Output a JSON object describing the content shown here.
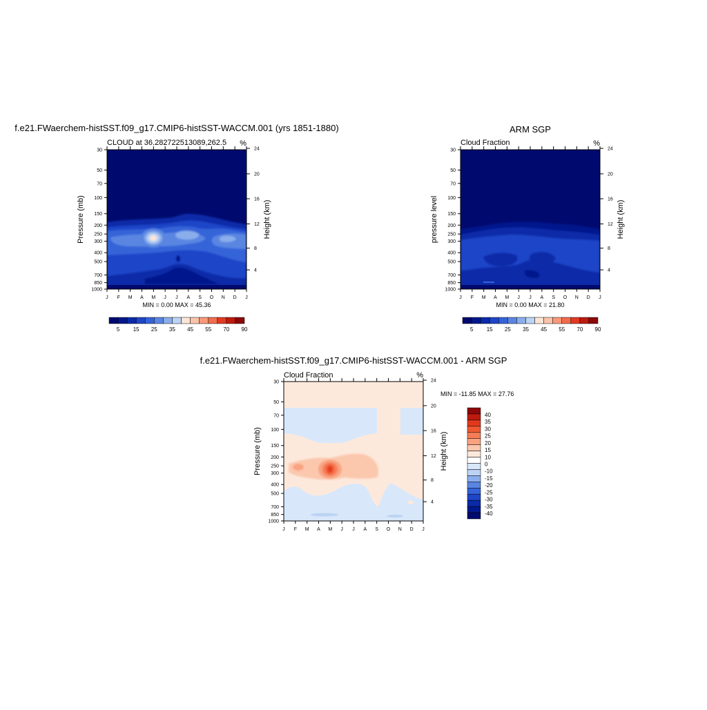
{
  "colors": {
    "blue_scale": [
      "#000a6e",
      "#00188c",
      "#0a2aa8",
      "#1f45c8",
      "#3563d8",
      "#5a86e2",
      "#8aaeeb",
      "#bdd3f3",
      "#fde5d6",
      "#fbc4aa",
      "#f9997a",
      "#f36c4c",
      "#e23a22",
      "#bf1a0e",
      "#8c0909"
    ],
    "diff_scale": [
      "#000a6e",
      "#00188c",
      "#0a2aa8",
      "#1f45c8",
      "#3563d8",
      "#5a86e2",
      "#8aaeeb",
      "#bdd3f3",
      "#d8e8fa",
      "#ffffff",
      "#fde9dc",
      "#fbc8ae",
      "#f9a381",
      "#f57d56",
      "#ef5a33",
      "#e2391e",
      "#bf1a0e",
      "#8c0909"
    ]
  },
  "chart_data": [
    {
      "type": "heatmap",
      "title": "f.e21.FWaerchem-histSST.f09_g17.CMIP6-histSST-WACCM.001 (yrs 1851-1880)",
      "subtitle": "CLOUD at 36.282722513089,262.5",
      "units": "%",
      "ylabel": "Pressure (mb)",
      "ylabel_right": "Height (km)",
      "x_ticks": [
        "J",
        "F",
        "M",
        "A",
        "M",
        "J",
        "J",
        "A",
        "S",
        "O",
        "N",
        "D",
        "J"
      ],
      "y_ticks": [
        "30",
        "50",
        "70",
        "100",
        "150",
        "200",
        "250",
        "300",
        "400",
        "500",
        "700",
        "850",
        "1000"
      ],
      "y_ticks_right": [
        "24",
        "20",
        "16",
        "12",
        "8",
        "4"
      ],
      "stats": "MIN =   0.00 MAX =  45.36",
      "min": 0.0,
      "max": 45.36,
      "colorbar_labels": [
        "5",
        "15",
        "25",
        "35",
        "45",
        "55",
        "70",
        "90"
      ],
      "levels": [
        5,
        10,
        15,
        20,
        25,
        30,
        35,
        40,
        45,
        50,
        55,
        60,
        70,
        80,
        90
      ]
    },
    {
      "type": "heatmap",
      "title": "ARM SGP",
      "subtitle": "Cloud Fraction",
      "units": "%",
      "ylabel": "pressure level",
      "ylabel_right": "Height (km)",
      "x_ticks": [
        "J",
        "F",
        "M",
        "A",
        "M",
        "J",
        "J",
        "A",
        "S",
        "O",
        "N",
        "D",
        "J"
      ],
      "y_ticks": [
        "30",
        "50",
        "70",
        "100",
        "150",
        "200",
        "250",
        "300",
        "400",
        "500",
        "700",
        "850",
        "1000"
      ],
      "y_ticks_right": [
        "24",
        "20",
        "16",
        "12",
        "8",
        "4"
      ],
      "stats": "MIN =   0.00 MAX =  21.80",
      "min": 0.0,
      "max": 21.8,
      "colorbar_labels": [
        "5",
        "15",
        "25",
        "35",
        "45",
        "55",
        "70",
        "90"
      ],
      "levels": [
        5,
        10,
        15,
        20,
        25,
        30,
        35,
        40,
        45,
        50,
        55,
        60,
        70,
        80,
        90
      ]
    },
    {
      "type": "heatmap",
      "title": "f.e21.FWaerchem-histSST.f09_g17.CMIP6-histSST-WACCM.001 - ARM SGP",
      "subtitle": "Cloud Fraction",
      "units": "%",
      "ylabel": "Pressure (mb)",
      "ylabel_right": "Height (km)",
      "x_ticks": [
        "J",
        "F",
        "M",
        "A",
        "M",
        "J",
        "J",
        "A",
        "S",
        "O",
        "N",
        "D",
        "J"
      ],
      "y_ticks": [
        "30",
        "50",
        "70",
        "100",
        "150",
        "200",
        "250",
        "300",
        "400",
        "500",
        "700",
        "850",
        "1000"
      ],
      "y_ticks_right": [
        "24",
        "20",
        "16",
        "12",
        "8",
        "4"
      ],
      "stats": "MIN = -11.85 MAX =  27.76",
      "min": -11.85,
      "max": 27.76,
      "colorbar_labels": [
        "40",
        "35",
        "30",
        "25",
        "20",
        "15",
        "10",
        "0",
        "-10",
        "-15",
        "-20",
        "-25",
        "-30",
        "-35",
        "-40"
      ],
      "levels": [
        -40,
        -35,
        -30,
        -25,
        -20,
        -15,
        -10,
        -5,
        0,
        5,
        10,
        15,
        20,
        25,
        30,
        35,
        40
      ]
    }
  ]
}
